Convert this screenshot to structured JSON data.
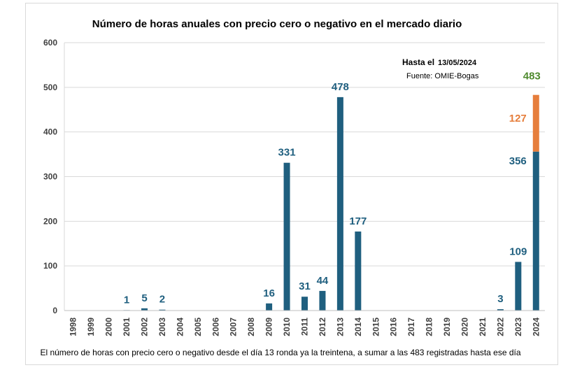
{
  "chart_data": {
    "type": "bar",
    "title": "Número de horas anuales con precio cero o negativo en el mercado diario",
    "annotation": {
      "as_of_label": "Hasta el",
      "as_of_date": "13/05/2024",
      "source": "Fuente: OMIE-Bogas"
    },
    "footer": "El número de horas con precio cero o negativo desde el día 13 ronda ya la treintena, a sumar a las 483 registradas hasta ese día",
    "categories": [
      "1998",
      "1999",
      "2000",
      "2001",
      "2002",
      "2003",
      "2004",
      "2005",
      "2006",
      "2007",
      "2008",
      "2009",
      "2010",
      "2011",
      "2012",
      "2013",
      "2014",
      "2015",
      "2016",
      "2017",
      "2018",
      "2019",
      "2020",
      "2021",
      "2022",
      "2023",
      "2024"
    ],
    "series": [
      {
        "values": [
          0,
          0,
          0,
          1,
          5,
          2,
          0,
          0,
          0,
          0,
          0,
          16,
          331,
          31,
          44,
          478,
          177,
          0,
          0,
          0,
          0,
          0,
          0,
          0,
          3,
          109,
          356
        ],
        "color": "#1f5f7f",
        "labels": [
          "",
          "",
          "",
          "1",
          "5",
          "2",
          "",
          "",
          "",
          "",
          "",
          "16",
          "331",
          "31",
          "44",
          "478",
          "177",
          "",
          "",
          "",
          "",
          "",
          "",
          "",
          "3",
          "109",
          "356"
        ]
      },
      {
        "values": [
          0,
          0,
          0,
          0,
          0,
          0,
          0,
          0,
          0,
          0,
          0,
          0,
          0,
          0,
          0,
          0,
          0,
          0,
          0,
          0,
          0,
          0,
          0,
          0,
          0,
          0,
          127
        ],
        "color": "#e67e3c",
        "labels": [
          "",
          "",
          "",
          "",
          "",
          "",
          "",
          "",
          "",
          "",
          "",
          "",
          "",
          "",
          "",
          "",
          "",
          "",
          "",
          "",
          "",
          "",
          "",
          "",
          "",
          "",
          "127"
        ]
      }
    ],
    "total_label": {
      "category": "2024",
      "value": "483",
      "color": "#4f8a2e"
    },
    "ylim": [
      0,
      600
    ],
    "yticks": [
      "0",
      "100",
      "200",
      "300",
      "400",
      "500",
      "600"
    ],
    "grid": true,
    "stacked": true
  }
}
